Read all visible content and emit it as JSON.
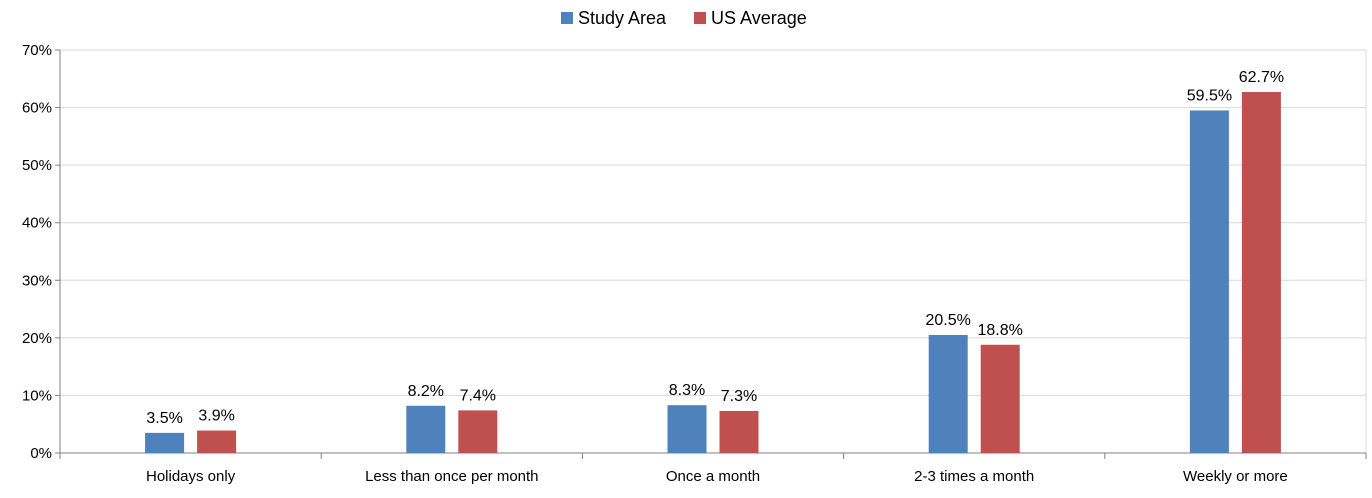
{
  "chart_data": {
    "type": "bar",
    "title": "",
    "xlabel": "",
    "ylabel": "",
    "categories": [
      "Holidays only",
      "Less than once per month",
      "Once a month",
      "2-3 times a month",
      "Weekly or more"
    ],
    "series": [
      {
        "name": "Study Area",
        "color": "#4F81BD",
        "values": [
          3.5,
          8.2,
          8.3,
          20.5,
          59.5
        ],
        "labels": [
          "3.5%",
          "8.2%",
          "8.3%",
          "20.5%",
          "59.5%"
        ]
      },
      {
        "name": "US Average",
        "color": "#C0504D",
        "values": [
          3.9,
          7.4,
          7.3,
          18.8,
          62.7
        ],
        "labels": [
          "3.9%",
          "7.4%",
          "7.3%",
          "18.8%",
          "62.7%"
        ]
      }
    ],
    "ylim": [
      0,
      70
    ],
    "yticks": [
      0,
      10,
      20,
      30,
      40,
      50,
      60,
      70
    ],
    "ytick_labels": [
      "0%",
      "10%",
      "20%",
      "30%",
      "40%",
      "50%",
      "60%",
      "70%"
    ],
    "grid": true,
    "legend": "top-center",
    "gridline_color": "#D9D9D9",
    "axis_color": "#808080"
  }
}
